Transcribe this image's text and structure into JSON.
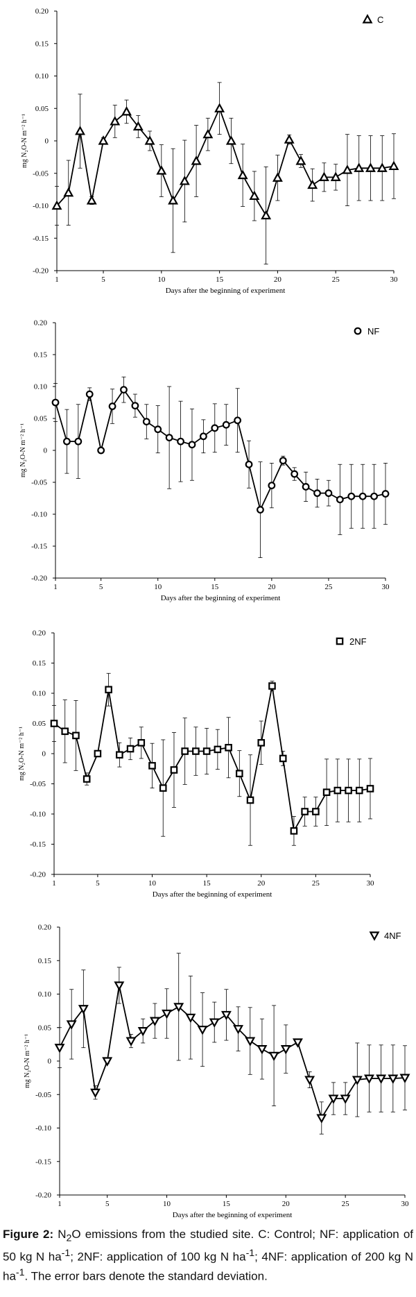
{
  "chart_data": [
    {
      "type": "line",
      "title": "",
      "legend": "C",
      "marker": "triangle-up",
      "xlabel": "Days after the beginning of experiment",
      "ylabel": "mg N₂O-N m⁻² h⁻¹",
      "xlim": [
        1,
        30
      ],
      "ylim": [
        -0.2,
        0.2
      ],
      "xticks": [
        1,
        5,
        10,
        15,
        20,
        25,
        30
      ],
      "yticks": [
        0.2,
        0.15,
        0.1,
        0.05,
        0,
        -0.05,
        -0.1,
        -0.15,
        -0.2
      ],
      "ytick_labels": [
        "0.20",
        "0.15",
        "0.10",
        "0.05",
        "0",
        "-0.05",
        "-0.10",
        "-0.15",
        "-0.20"
      ],
      "x": [
        1,
        2,
        3,
        4,
        5,
        6,
        7,
        8,
        9,
        10,
        11,
        12,
        13,
        14,
        15,
        16,
        17,
        18,
        19,
        20,
        21,
        22,
        23,
        24,
        25,
        26,
        27,
        28,
        29,
        30
      ],
      "values": [
        -0.1,
        -0.08,
        0.015,
        -0.092,
        0.0,
        0.03,
        0.045,
        0.022,
        0.0,
        -0.046,
        -0.092,
        -0.062,
        -0.031,
        0.01,
        0.05,
        0.0,
        -0.053,
        -0.085,
        -0.115,
        -0.057,
        0.002,
        -0.031,
        -0.068,
        -0.056,
        -0.056,
        -0.045,
        -0.042,
        -0.042,
        -0.042,
        -0.039
      ],
      "errors": [
        0.03,
        0.05,
        0.057,
        0.006,
        0.005,
        0.025,
        0.018,
        0.017,
        0.015,
        0.04,
        0.08,
        0.063,
        0.055,
        0.025,
        0.04,
        0.035,
        0.048,
        0.038,
        0.075,
        0.035,
        0.007,
        0.01,
        0.025,
        0.022,
        0.02,
        0.055,
        0.05,
        0.05,
        0.05,
        0.05
      ]
    },
    {
      "type": "line",
      "title": "",
      "legend": "NF",
      "marker": "circle",
      "xlabel": "Days after the beginning of experiment",
      "ylabel": "mg N₂O-N m⁻² h⁻¹",
      "xlim": [
        1,
        30
      ],
      "ylim": [
        -0.2,
        0.2
      ],
      "xticks": [
        1,
        5,
        10,
        15,
        20,
        25,
        30
      ],
      "yticks": [
        0.2,
        0.15,
        0.1,
        0.05,
        0,
        -0.05,
        -0.1,
        -0.15,
        -0.2
      ],
      "ytick_labels": [
        "0.20",
        "0.15",
        "0.10",
        "0.05",
        "0",
        "-0.05",
        "-0.10",
        "-0.15",
        "-0.20"
      ],
      "x": [
        1,
        2,
        3,
        4,
        5,
        6,
        7,
        8,
        9,
        10,
        11,
        12,
        13,
        14,
        15,
        16,
        17,
        18,
        19,
        20,
        21,
        22,
        23,
        24,
        25,
        26,
        27,
        28,
        29,
        30
      ],
      "values": [
        0.075,
        0.014,
        0.014,
        0.088,
        0.0,
        0.069,
        0.095,
        0.07,
        0.045,
        0.033,
        0.02,
        0.014,
        0.009,
        0.022,
        0.035,
        0.04,
        0.047,
        -0.022,
        -0.093,
        -0.055,
        -0.016,
        -0.037,
        -0.057,
        -0.067,
        -0.067,
        -0.077,
        -0.072,
        -0.072,
        -0.072,
        -0.068
      ],
      "errors": [
        0.03,
        0.05,
        0.058,
        0.01,
        0.004,
        0.027,
        0.02,
        0.018,
        0.027,
        0.037,
        0.08,
        0.063,
        0.056,
        0.026,
        0.038,
        0.032,
        0.05,
        0.037,
        0.075,
        0.035,
        0.007,
        0.01,
        0.023,
        0.022,
        0.02,
        0.055,
        0.05,
        0.05,
        0.05,
        0.048
      ]
    },
    {
      "type": "line",
      "title": "",
      "legend": "2NF",
      "marker": "square",
      "xlabel": "Days after the beginning of experiment",
      "ylabel": "mg N₂O-N m⁻² h⁻¹",
      "xlim": [
        1,
        30
      ],
      "ylim": [
        -0.2,
        0.2
      ],
      "xticks": [
        1,
        5,
        10,
        15,
        20,
        25,
        30
      ],
      "yticks": [
        0.2,
        0.15,
        0.1,
        0.05,
        0,
        -0.05,
        -0.1,
        -0.15,
        -0.2
      ],
      "ytick_labels": [
        "0.20",
        "0.15",
        "0.10",
        "0.05",
        "0",
        "-0.05",
        "-0.10",
        "-0.15",
        "-0.20"
      ],
      "x": [
        1,
        2,
        3,
        4,
        5,
        6,
        7,
        8,
        9,
        10,
        11,
        12,
        13,
        14,
        15,
        16,
        17,
        18,
        19,
        20,
        21,
        22,
        23,
        24,
        25,
        26,
        27,
        28,
        29,
        30
      ],
      "values": [
        0.05,
        0.037,
        0.03,
        -0.042,
        0.0,
        0.106,
        -0.002,
        0.008,
        0.018,
        -0.02,
        -0.057,
        -0.027,
        0.004,
        0.004,
        0.004,
        0.007,
        0.01,
        -0.033,
        -0.077,
        0.018,
        0.112,
        -0.008,
        -0.128,
        -0.096,
        -0.096,
        -0.064,
        -0.061,
        -0.061,
        -0.061,
        -0.058
      ],
      "errors": [
        0.03,
        0.052,
        0.058,
        0.01,
        0.004,
        0.027,
        0.02,
        0.018,
        0.026,
        0.037,
        0.08,
        0.062,
        0.055,
        0.04,
        0.038,
        0.033,
        0.05,
        0.038,
        0.075,
        0.036,
        0.008,
        0.012,
        0.024,
        0.024,
        0.024,
        0.055,
        0.052,
        0.052,
        0.052,
        0.05
      ]
    },
    {
      "type": "line",
      "title": "",
      "legend": "4NF",
      "marker": "triangle-down",
      "xlabel": "Days after the beginning of experiment",
      "ylabel": "mg N₂O-N m⁻² h⁻¹",
      "xlim": [
        1,
        30
      ],
      "ylim": [
        -0.2,
        0.2
      ],
      "xticks": [
        1,
        5,
        10,
        15,
        20,
        25,
        30
      ],
      "yticks": [
        0.2,
        0.15,
        0.1,
        0.05,
        0,
        -0.05,
        -0.1,
        -0.15,
        -0.2
      ],
      "ytick_labels": [
        "0.20",
        "0.15",
        "0.10",
        "0.05",
        "0",
        "-0.05",
        "-0.10",
        "-0.15",
        "-0.20"
      ],
      "x": [
        1,
        2,
        3,
        4,
        5,
        6,
        7,
        8,
        9,
        10,
        11,
        12,
        13,
        14,
        15,
        16,
        17,
        18,
        19,
        20,
        21,
        22,
        23,
        24,
        25,
        26,
        27,
        28,
        29,
        30
      ],
      "values": [
        0.02,
        0.055,
        0.078,
        -0.047,
        0.0,
        0.113,
        0.03,
        0.045,
        0.06,
        0.071,
        0.081,
        0.065,
        0.047,
        0.058,
        0.069,
        0.048,
        0.03,
        0.018,
        0.008,
        0.018,
        0.028,
        -0.028,
        -0.085,
        -0.056,
        -0.056,
        -0.028,
        -0.026,
        -0.026,
        -0.026,
        -0.025
      ],
      "errors": [
        0.03,
        0.052,
        0.058,
        0.01,
        0.004,
        0.027,
        0.01,
        0.018,
        0.026,
        0.037,
        0.08,
        0.062,
        0.055,
        0.03,
        0.038,
        0.033,
        0.05,
        0.045,
        0.075,
        0.036,
        0.004,
        0.012,
        0.024,
        0.024,
        0.024,
        0.055,
        0.05,
        0.05,
        0.05,
        0.048
      ]
    }
  ],
  "caption": {
    "label": "Figure 2:",
    "text_before_sub": " N",
    "subscript": "2",
    "text_mid1": "O emissions from the studied site. C: Control; NF: application of 50 kg N ha",
    "sup1": "-1",
    "text_mid2": "; 2NF: application of 100 kg N ha",
    "sup2": "-1",
    "text_mid3": "; 4NF: application of 200 kg N ha",
    "sup3": "-1",
    "text_end": ". The error bars denote the standard deviation."
  }
}
